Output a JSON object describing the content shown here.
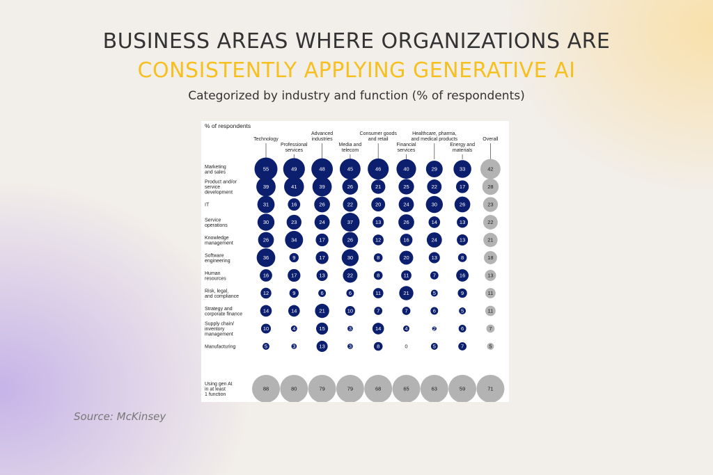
{
  "header": {
    "title_line1": "BUSINESS AREAS WHERE ORGANIZATIONS ARE",
    "title_line2": "CONSISTENTLY APPLYING GENERATIVE AI",
    "subtitle": "Categorized by industry and function (% of respondents)",
    "accent_color": "#f5c020"
  },
  "footer": {
    "source": "Source: McKinsey"
  },
  "chart_data": {
    "type": "bubble-matrix",
    "unit_label": "% of respondents",
    "columns": [
      {
        "label": [
          "Technology"
        ]
      },
      {
        "label": [
          "Professional",
          "services"
        ]
      },
      {
        "label": [
          "Advanced",
          "industries"
        ]
      },
      {
        "label": [
          "Media and",
          "telecom"
        ]
      },
      {
        "label": [
          "Consumer goods",
          "and retail"
        ]
      },
      {
        "label": [
          "Financial",
          "services"
        ]
      },
      {
        "label": [
          "Healthcare, pharma,",
          "and medical products"
        ]
      },
      {
        "label": [
          "Energy and",
          "materials"
        ]
      },
      {
        "label": [
          "Overall"
        ]
      }
    ],
    "rows": [
      {
        "label": [
          "Marketing",
          "and sales"
        ],
        "values": [
          55,
          49,
          48,
          45,
          46,
          40,
          29,
          33,
          42
        ]
      },
      {
        "label": [
          "Product and/or",
          "service",
          "development"
        ],
        "values": [
          39,
          41,
          39,
          26,
          21,
          25,
          22,
          17,
          28
        ]
      },
      {
        "label": [
          "IT"
        ],
        "values": [
          31,
          16,
          26,
          22,
          20,
          24,
          30,
          26,
          23
        ]
      },
      {
        "label": [
          "Service",
          "operations"
        ],
        "values": [
          30,
          23,
          24,
          37,
          13,
          26,
          14,
          13,
          22
        ]
      },
      {
        "label": [
          "Knowledge",
          "management"
        ],
        "values": [
          26,
          34,
          17,
          26,
          12,
          16,
          24,
          13,
          21
        ]
      },
      {
        "label": [
          "Software",
          "engineering"
        ],
        "values": [
          36,
          9,
          17,
          30,
          8,
          20,
          13,
          8,
          18
        ]
      },
      {
        "label": [
          "Human",
          "resources"
        ],
        "values": [
          16,
          17,
          13,
          22,
          8,
          11,
          7,
          16,
          13
        ]
      },
      {
        "label": [
          "Risk, legal,",
          "and compliance"
        ],
        "values": [
          12,
          9,
          6,
          6,
          11,
          21,
          5,
          9,
          11
        ]
      },
      {
        "label": [
          "Strategy and",
          "corporate finance"
        ],
        "values": [
          14,
          14,
          21,
          10,
          7,
          7,
          6,
          5,
          11
        ]
      },
      {
        "label": [
          "Supply chain/",
          "inventory",
          "management"
        ],
        "values": [
          10,
          4,
          15,
          3,
          14,
          4,
          2,
          6,
          7
        ]
      },
      {
        "label": [
          "Manufacturing"
        ],
        "values": [
          5,
          3,
          13,
          3,
          8,
          0,
          5,
          7,
          5
        ]
      }
    ],
    "summary_row": {
      "label": [
        "Using gen AI",
        "in at least",
        "1 function"
      ],
      "values": [
        88,
        80,
        79,
        79,
        68,
        65,
        63,
        59,
        71
      ]
    },
    "colors": {
      "industry": "#0c1e6e",
      "overall": "#b3b3b3",
      "leader": "#555555",
      "text": "#1a1a1a"
    }
  }
}
